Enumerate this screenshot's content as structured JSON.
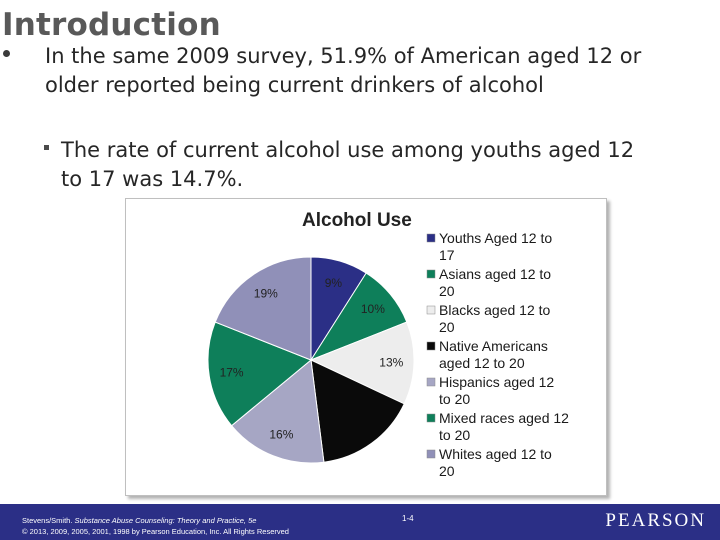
{
  "slide": {
    "title": "Introduction",
    "bullet_main": "In the same 2009 survey, 51.9% of American aged 12 or older reported being current drinkers of alcohol",
    "bullet_sub": "The rate of current alcohol use among youths aged 12 to 17 was 14.7%."
  },
  "chart_data": {
    "type": "pie",
    "title": "Alcohol Use",
    "legend_position": "right",
    "slices": [
      {
        "label": "Youths Aged 12 to 17",
        "value": 9,
        "display": "9%",
        "color": "#2b2f86"
      },
      {
        "label": "Asians aged 12 to 20",
        "value": 10,
        "display": "10%",
        "color": "#0e7f5a"
      },
      {
        "label": "Blacks aged 12 to 20",
        "value": 13,
        "display": "13%",
        "color": "#ededed"
      },
      {
        "label": "Native Americans aged 12 to 20",
        "value": 16,
        "display": "",
        "color": "#0a0a0a"
      },
      {
        "label": "Hispanics aged 12 to 20",
        "value": 16,
        "display": "16%",
        "color": "#a6a6c4"
      },
      {
        "label": "Mixed races aged 12 to 20",
        "value": 17,
        "display": "17%",
        "color": "#0e7f5a"
      },
      {
        "label": "Whites aged 12 to 20",
        "value": 19,
        "display": "19%",
        "color": "#9090b8"
      }
    ]
  },
  "footer": {
    "citation_author": "Stevens/Smith. ",
    "citation_title": "Substance Abuse Counseling: Theory and Practice, 5e",
    "citation_copyright": "© 2013, 2009, 2005, 2001, 1998 by Pearson Education, Inc. All Rights Reserved",
    "page_number": "1-4",
    "brand": "PEARSON",
    "bar_color": "#2b2f86"
  }
}
